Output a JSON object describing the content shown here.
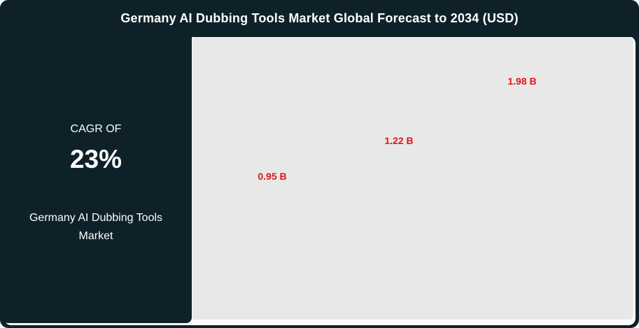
{
  "header": {
    "title": "Germany AI Dubbing Tools Market Global Forecast to 2034 (USD)"
  },
  "sidebar": {
    "cagr_label": "CAGR OF",
    "cagr_value": "23%",
    "market_name": "Germany AI Dubbing Tools Market"
  },
  "chart_data": {
    "type": "bar",
    "title": "Germany AI Dubbing Tools Market Global Forecast to 2034 (USD)",
    "unit": "USD Billion",
    "values": [
      0.95,
      1.22,
      1.98
    ],
    "data_labels": [
      "0.95 B",
      "1.22 B",
      "1.98 B"
    ],
    "cagr": "23%",
    "legend": "none",
    "axes": "hidden",
    "grid": "off",
    "plot_background": "#e8e8e9",
    "data_label_color": "#e11414"
  },
  "colors": {
    "card_background": "#0e2129",
    "panel_background": "#fdfdfd",
    "plot_background": "#e8e8e9",
    "accent_red": "#e11414",
    "text_white": "#ffffff"
  }
}
